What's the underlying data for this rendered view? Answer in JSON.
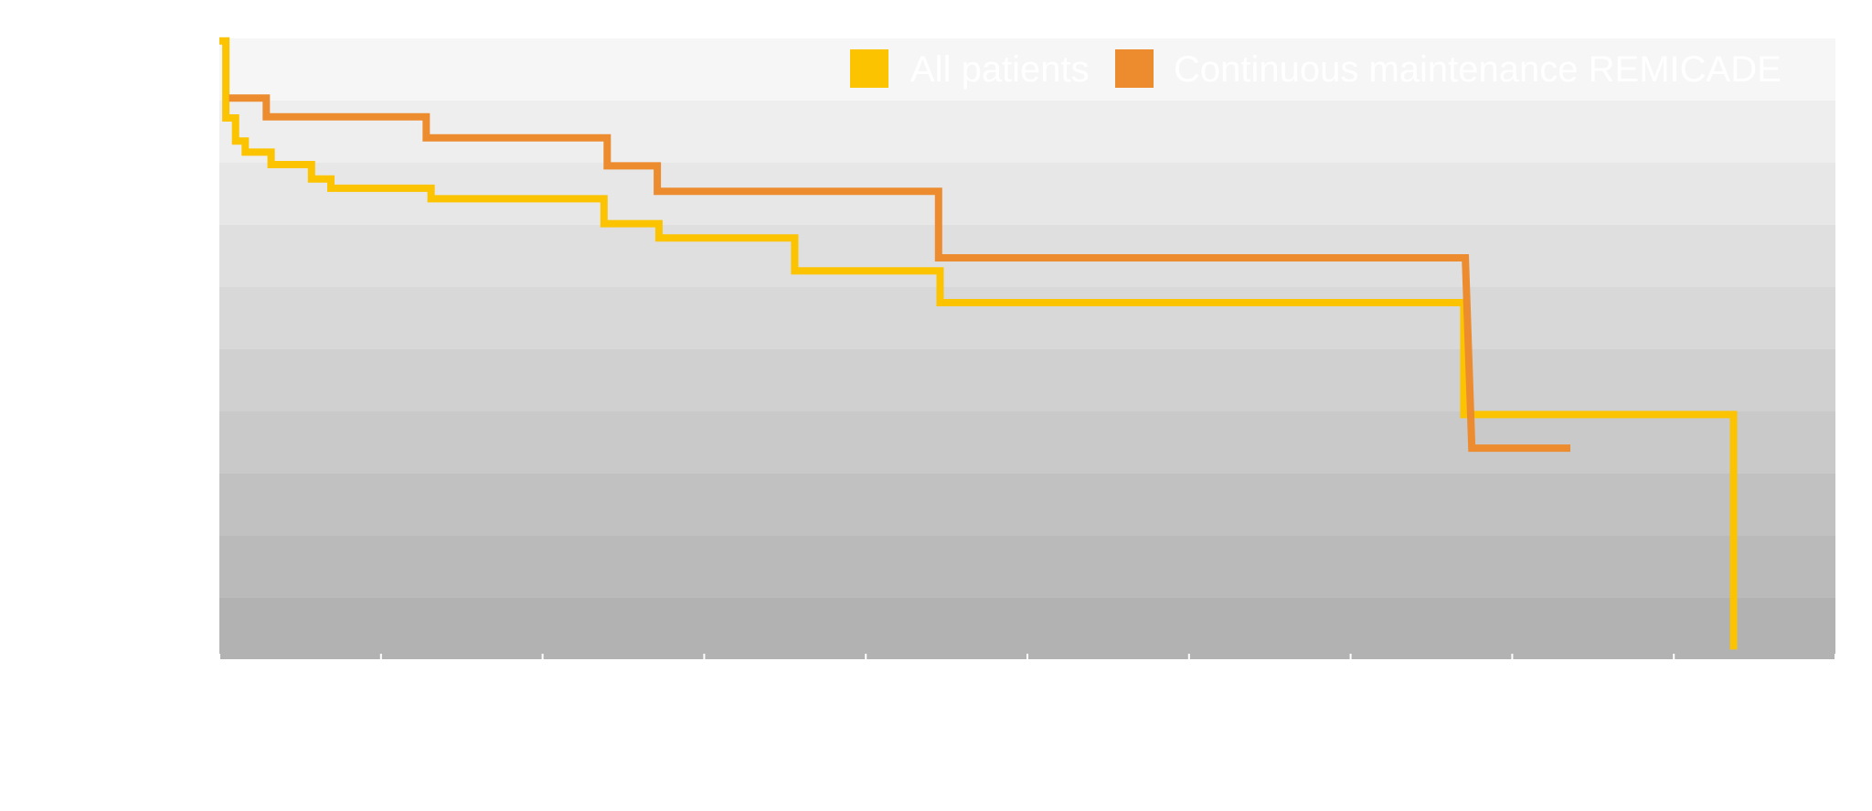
{
  "chart_data": {
    "type": "line",
    "step": true,
    "title": "",
    "xlabel": "",
    "ylabel": "",
    "xlim": [
      0,
      100
    ],
    "ylim": [
      0,
      100
    ],
    "x_tick_count": 11,
    "grid": true,
    "legend_position": "top-right",
    "band_color_top": "#f6f6f6",
    "band_color_bottom": "#b2b2b2",
    "series": [
      {
        "name": "All patients",
        "color": "#fcc300",
        "points": [
          [
            0,
            99.6
          ],
          [
            0.4,
            99.6
          ],
          [
            0.4,
            87.2
          ],
          [
            1.0,
            87.2
          ],
          [
            1.0,
            83.5
          ],
          [
            1.6,
            83.5
          ],
          [
            1.6,
            81.7
          ],
          [
            3.2,
            81.7
          ],
          [
            3.2,
            79.7
          ],
          [
            5.7,
            79.7
          ],
          [
            5.7,
            77.4
          ],
          [
            6.9,
            77.4
          ],
          [
            6.9,
            75.9
          ],
          [
            13.1,
            75.9
          ],
          [
            13.1,
            74.2
          ],
          [
            23.8,
            74.2
          ],
          [
            23.8,
            70.2
          ],
          [
            27.2,
            70.2
          ],
          [
            27.2,
            67.9
          ],
          [
            35.6,
            67.9
          ],
          [
            35.6,
            62.6
          ],
          [
            44.6,
            62.6
          ],
          [
            44.6,
            57.5
          ],
          [
            77.0,
            57.5
          ],
          [
            77.0,
            39.5
          ],
          [
            93.7,
            39.5
          ],
          [
            93.7,
            1.7
          ]
        ]
      },
      {
        "name": "Continuous maintenance REMICADE",
        "color": "#ec8c2e",
        "points": [
          [
            0.6,
            90.4
          ],
          [
            2.9,
            90.4
          ],
          [
            2.9,
            87.4
          ],
          [
            12.8,
            87.4
          ],
          [
            12.8,
            84.0
          ],
          [
            24.0,
            84.0
          ],
          [
            24.0,
            79.5
          ],
          [
            27.1,
            79.5
          ],
          [
            27.1,
            75.4
          ],
          [
            44.5,
            75.4
          ],
          [
            44.5,
            64.7
          ],
          [
            77.1,
            64.7
          ],
          [
            77.5,
            34.1
          ],
          [
            83.6,
            34.1
          ]
        ]
      }
    ]
  }
}
